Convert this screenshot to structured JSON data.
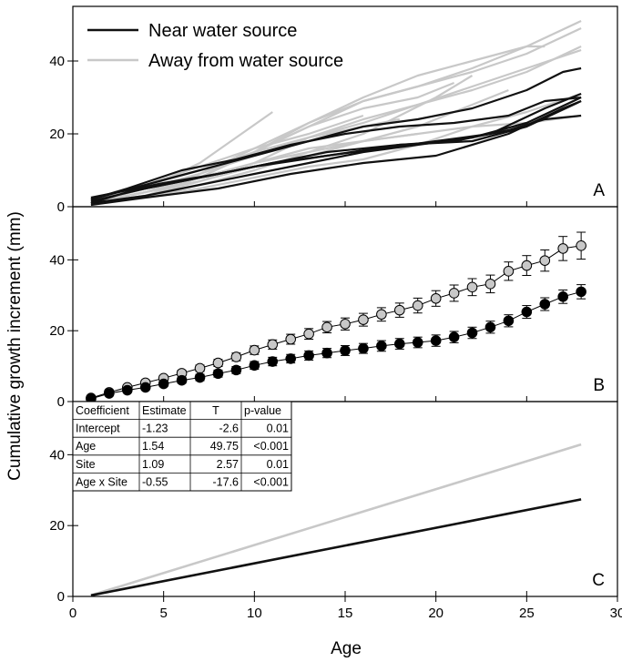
{
  "chart_data": {
    "type": "line",
    "xlabel": "Age",
    "ylabel": "Cumulative growth increment (mm)",
    "xlim": [
      0,
      30
    ],
    "xticks": [
      0,
      5,
      10,
      15,
      20,
      25,
      30
    ],
    "colors": {
      "near": "#111111",
      "away": "#c8c8c8"
    },
    "legend": {
      "placement": "top-left",
      "entries": [
        {
          "label": "Near water source",
          "color": "#111111"
        },
        {
          "label": "Away from water source",
          "color": "#c8c8c8"
        }
      ]
    },
    "panels": [
      {
        "letter": "A",
        "type": "line",
        "ylim": [
          0,
          55
        ],
        "yticks": [
          0,
          20,
          40
        ],
        "series": [
          {
            "group": "near",
            "x": [
              1,
              3,
              5,
              8,
              11,
              14,
              17,
              20,
              23,
              26,
              28
            ],
            "y": [
              2.5,
              4.5,
              6.5,
              9,
              12,
              14,
              16,
              18,
              20,
              27,
              31
            ]
          },
          {
            "group": "near",
            "x": [
              1,
              4,
              7,
              10,
              13,
              16,
              19,
              22,
              25,
              28
            ],
            "y": [
              1,
              3,
              6,
              9,
              12,
              15,
              17,
              19,
              23,
              30
            ]
          },
          {
            "group": "near",
            "x": [
              1,
              4,
              8,
              12,
              16,
              20,
              24,
              27,
              28
            ],
            "y": [
              0.5,
              2.5,
              5,
              9,
              12,
              14,
              20,
              27,
              29
            ]
          },
          {
            "group": "near",
            "x": [
              1,
              4,
              7,
              10,
              14,
              18,
              21,
              24,
              26,
              28
            ],
            "y": [
              1.5,
              5,
              8,
              11,
              15,
              17,
              18,
              21,
              24,
              25
            ]
          },
          {
            "group": "near",
            "x": [
              1,
              3,
              6,
              9,
              12,
              15,
              18,
              21,
              24,
              26,
              28
            ],
            "y": [
              2,
              5,
              10,
              13,
              17,
              20,
              22,
              23,
              25,
              29,
              30
            ]
          },
          {
            "group": "near",
            "x": [
              1,
              3,
              6,
              10,
              14,
              18,
              22,
              25,
              28
            ],
            "y": [
              1,
              4,
              7,
              11,
              14,
              17,
              18,
              22,
              29
            ]
          },
          {
            "group": "near",
            "x": [
              1,
              4,
              7,
              10,
              13,
              16,
              19,
              22,
              25,
              27,
              28
            ],
            "y": [
              2,
              6,
              10,
              14,
              18,
              22,
              24,
              27,
              32,
              37,
              38
            ]
          },
          {
            "group": "away",
            "x": [
              1,
              4,
              7,
              10,
              13,
              16,
              19,
              22,
              25,
              28
            ],
            "y": [
              1,
              4,
              9,
              16,
              23,
              29,
              33,
              38,
              44,
              51
            ]
          },
          {
            "group": "away",
            "x": [
              1,
              4,
              7,
              10,
              13,
              16,
              19,
              22,
              25,
              28
            ],
            "y": [
              1.5,
              6,
              10,
              15,
              22,
              29,
              33,
              37,
              42,
              49
            ]
          },
          {
            "group": "away",
            "x": [
              1,
              4,
              7,
              10,
              13,
              16,
              19,
              22,
              25,
              28
            ],
            "y": [
              1,
              3,
              7,
              12,
              19,
              24,
              28,
              33,
              38,
              43
            ]
          },
          {
            "group": "away",
            "x": [
              1,
              4,
              7,
              10,
              13,
              16,
              19,
              22,
              25,
              28
            ],
            "y": [
              2,
              5,
              9,
              14,
              19,
              23,
              28,
              32,
              37,
              44
            ]
          },
          {
            "group": "away",
            "x": [
              1,
              4,
              7,
              10,
              13,
              16,
              19,
              22,
              25,
              28
            ],
            "y": [
              1,
              4,
              8,
              12,
              15,
              18,
              20,
              22,
              23,
              25
            ]
          },
          {
            "group": "away",
            "x": [
              1,
              4,
              7,
              10,
              13,
              16,
              19,
              22,
              25,
              28
            ],
            "y": [
              0.5,
              3,
              5,
              8,
              11,
              13,
              17,
              22,
              26,
              31
            ]
          },
          {
            "group": "away",
            "x": [
              1,
              4,
              7,
              10,
              13,
              16,
              19,
              22,
              25,
              26
            ],
            "y": [
              1,
              4,
              8,
              15,
              23,
              30,
              36,
              40,
              44,
              44
            ]
          },
          {
            "group": "away",
            "x": [
              1,
              4,
              7,
              10,
              13,
              16,
              19,
              22,
              24
            ],
            "y": [
              1,
              4,
              7,
              11,
              14,
              18,
              22,
              28,
              32
            ]
          },
          {
            "group": "away",
            "x": [
              1,
              4,
              7,
              10,
              13,
              16,
              18,
              20,
              22
            ],
            "y": [
              1,
              3,
              6,
              10,
              15,
              20,
              25,
              30,
              36
            ]
          },
          {
            "group": "away",
            "x": [
              1,
              4,
              7,
              10,
              13,
              16,
              19,
              21
            ],
            "y": [
              1.5,
              5,
              9,
              15,
              22,
              27,
              30,
              34
            ]
          },
          {
            "group": "away",
            "x": [
              1,
              4,
              7,
              10,
              13,
              16,
              19
            ],
            "y": [
              1,
              4,
              7,
              12,
              16,
              18,
              20
            ]
          },
          {
            "group": "away",
            "x": [
              1,
              4,
              7,
              10,
              13,
              16
            ],
            "y": [
              2,
              6,
              11,
              16,
              20,
              25
            ]
          },
          {
            "group": "away",
            "x": [
              1,
              4,
              7,
              10,
              13,
              16,
              18
            ],
            "y": [
              1,
              3,
              8,
              15,
              19,
              22,
              24
            ]
          },
          {
            "group": "away",
            "x": [
              1,
              4,
              7,
              9,
              11
            ],
            "y": [
              1,
              5,
              12,
              19,
              26
            ]
          }
        ]
      },
      {
        "letter": "B",
        "type": "scatter",
        "ylim": [
          0,
          55
        ],
        "yticks": [
          0,
          20,
          40
        ],
        "series": [
          {
            "group": "away",
            "x": [
              1,
              2,
              3,
              4,
              5,
              6,
              7,
              8,
              9,
              10,
              11,
              12,
              13,
              14,
              15,
              16,
              17,
              18,
              19,
              20,
              21,
              22,
              23,
              24,
              25,
              26,
              27,
              28
            ],
            "y": [
              1.0,
              2.6,
              4.0,
              5.3,
              6.6,
              8.0,
              9.4,
              10.9,
              12.6,
              14.5,
              16.1,
              17.6,
              19.1,
              21.0,
              21.9,
              23.1,
              24.6,
              25.8,
              27.1,
              29.1,
              30.6,
              32.3,
              33.2,
              36.8,
              38.4,
              39.8,
              43.2,
              44.0
            ],
            "err": [
              0.3,
              0.4,
              0.5,
              0.6,
              0.7,
              0.8,
              0.9,
              1.0,
              1.1,
              1.2,
              1.3,
              1.4,
              1.5,
              1.6,
              1.7,
              1.8,
              1.9,
              2.0,
              2.1,
              2.2,
              2.3,
              2.4,
              2.5,
              2.6,
              2.8,
              3.0,
              3.4,
              3.8
            ]
          },
          {
            "group": "near",
            "x": [
              1,
              2,
              3,
              4,
              5,
              6,
              7,
              8,
              9,
              10,
              11,
              12,
              13,
              14,
              15,
              16,
              17,
              18,
              19,
              20,
              21,
              22,
              23,
              24,
              25,
              26,
              27,
              28
            ],
            "y": [
              0.8,
              2.3,
              3.2,
              4.0,
              5.0,
              6.0,
              6.8,
              7.9,
              8.9,
              10.2,
              11.3,
              12.1,
              13.0,
              13.7,
              14.4,
              15.0,
              15.7,
              16.3,
              16.7,
              17.2,
              18.2,
              19.4,
              21.0,
              22.8,
              25.3,
              27.5,
              29.6,
              31.0
            ],
            "err": [
              0.3,
              0.4,
              0.5,
              0.6,
              0.7,
              0.8,
              0.9,
              1.0,
              1.0,
              1.1,
              1.2,
              1.2,
              1.3,
              1.3,
              1.4,
              1.4,
              1.5,
              1.5,
              1.5,
              1.6,
              1.6,
              1.6,
              1.7,
              1.7,
              1.8,
              1.8,
              1.9,
              2.0
            ]
          }
        ]
      },
      {
        "letter": "C",
        "type": "line",
        "ylim": [
          0,
          55
        ],
        "yticks": [
          0,
          20,
          40
        ],
        "series": [
          {
            "group": "away",
            "x": [
              1,
              28
            ],
            "y": [
              0.3,
              42.9
            ]
          },
          {
            "group": "near",
            "x": [
              1,
              28
            ],
            "y": [
              0.3,
              27.4
            ]
          }
        ],
        "table": {
          "headers": [
            "Coefficient",
            "Estimate",
            "T",
            "p-value"
          ],
          "rows": [
            [
              "Intercept",
              "-1.23",
              "-2.6",
              "0.01"
            ],
            [
              "Age",
              "1.54",
              "49.75",
              "<0.001"
            ],
            [
              "Site",
              "1.09",
              "2.57",
              "0.01"
            ],
            [
              "Age x Site",
              "-0.55",
              "-17.6",
              "<0.001"
            ]
          ]
        }
      }
    ]
  }
}
